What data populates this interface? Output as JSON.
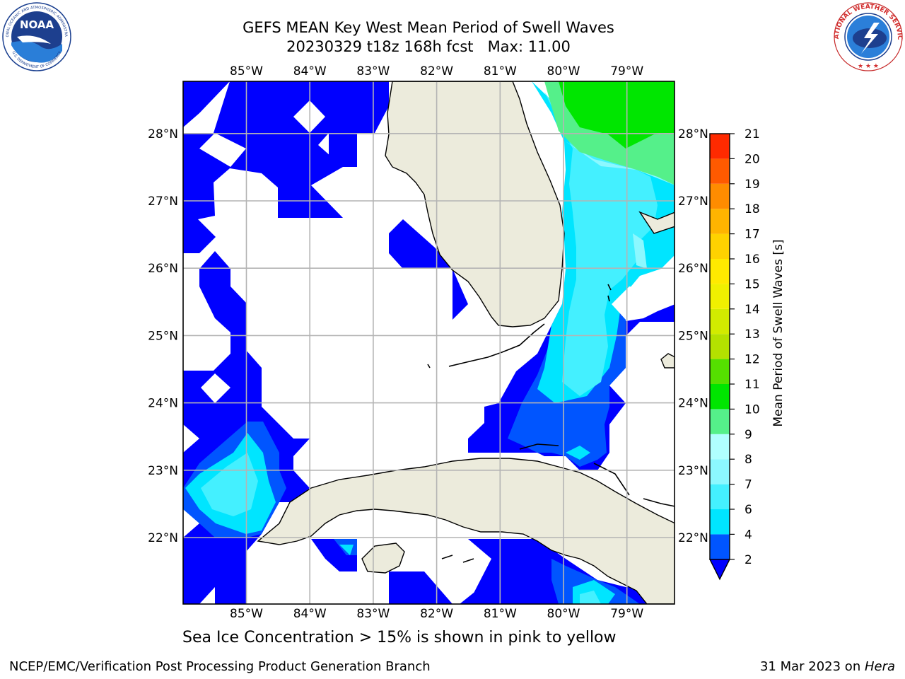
{
  "title": {
    "line1": "GEFS MEAN Key West Mean Period of Swell Waves",
    "line2": "20230329 t18z 168h fcst   Max: 11.00"
  },
  "logos": {
    "noaa_text": "NOAA",
    "noaa_ring_top": "NATIONAL OCEANIC AND ATMOSPHERIC ADMINISTRATION",
    "noaa_ring_bottom": "U.S. DEPARTMENT OF COMMERCE",
    "nws_ring_top": "NATIONAL WEATHER SERVICE"
  },
  "map": {
    "lon_ticks": [
      "85°W",
      "84°W",
      "83°W",
      "82°W",
      "81°W",
      "80°W",
      "79°W"
    ],
    "lat_ticks": [
      "22°N",
      "23°N",
      "24°N",
      "25°N",
      "26°N",
      "27°N",
      "28°N"
    ],
    "land_color": "#ecebdc",
    "grid_color": "#b4b4b4"
  },
  "colorbar": {
    "label": "Mean Period of Swell Waves [s]",
    "ticks": [
      "2",
      "4",
      "6",
      "7",
      "8",
      "9",
      "10",
      "11",
      "12",
      "13",
      "14",
      "15",
      "16",
      "17",
      "18",
      "19",
      "20",
      "21"
    ],
    "colors": [
      "#0055ff",
      "#00e5ff",
      "#44f0ff",
      "#8cf8ff",
      "#b0ffff",
      "#55f08a",
      "#00e600",
      "#55e000",
      "#b4e100",
      "#d2eb00",
      "#f0f000",
      "#ffea00",
      "#ffd200",
      "#ffb400",
      "#ff8c00",
      "#ff5a00",
      "#ff2a00",
      "#ff0000"
    ],
    "under_color": "#0000ff"
  },
  "sea_ice_note": "Sea Ice Concentration > 15% is shown in pink to yellow",
  "footer": {
    "left": "NCEP/EMC/Verification Post Processing Product Generation Branch",
    "date": "31 Mar 2023 on ",
    "machine": "Hera"
  }
}
